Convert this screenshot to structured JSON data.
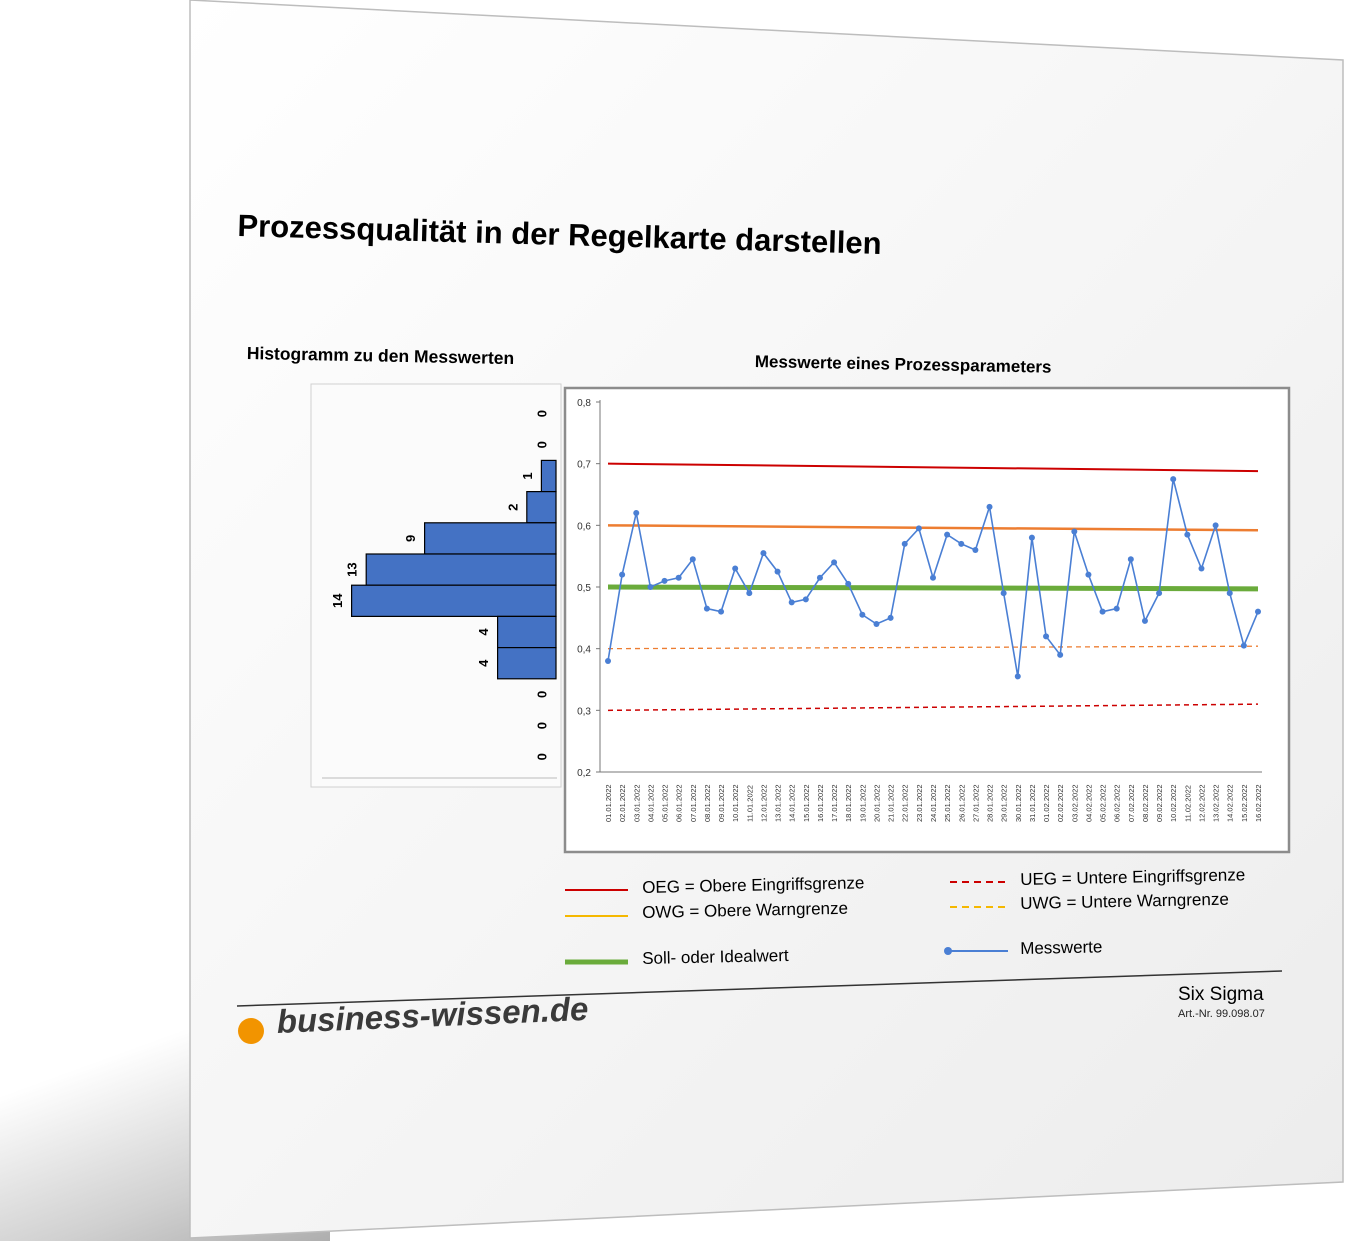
{
  "page": {
    "title": "Prozessqualität in der Regelkarte darstellen",
    "brand": "business-wissen.de",
    "category": "Six Sigma",
    "article": "Art.-Nr. 99.098.07",
    "colors": {
      "brand_orange": "#f29400",
      "bar_fill": "#4472c4",
      "measure_line": "#4a7fd4",
      "oeg": "#cc0000",
      "owg": "#ed7d31",
      "target": "#6aab3b"
    }
  },
  "legend": {
    "oeg": "OEG = Obere Eingriffsgrenze",
    "owg": "OWG = Obere Warngrenze",
    "soll": "Soll- oder Idealwert",
    "ueg": "UEG = Untere Eingriffsgrenze",
    "uwg": "UWG = Untere Warngrenze",
    "mess": "Messwerte"
  },
  "chart_data": [
    {
      "type": "bar",
      "orientation": "horizontal",
      "title": "Histogramm zu den Messwerten",
      "values": [
        0,
        0,
        1,
        2,
        9,
        13,
        14,
        4,
        4,
        0,
        0,
        0
      ]
    },
    {
      "type": "line",
      "title": "Messwerte eines Prozessparameters",
      "ylim": [
        0.2,
        0.8
      ],
      "yticks": [
        "0,2",
        "0,3",
        "0,4",
        "0,5",
        "0,6",
        "0,7",
        "0,8"
      ],
      "x": [
        "01.01.2022",
        "02.01.2022",
        "03.01.2022",
        "04.01.2022",
        "05.01.2022",
        "06.01.2022",
        "07.01.2022",
        "08.01.2022",
        "09.01.2022",
        "10.01.2022",
        "11.01.2022",
        "12.01.2022",
        "13.01.2022",
        "14.01.2022",
        "15.01.2022",
        "16.01.2022",
        "17.01.2022",
        "18.01.2022",
        "19.01.2022",
        "20.01.2022",
        "21.01.2022",
        "22.01.2022",
        "23.01.2022",
        "24.01.2022",
        "25.01.2022",
        "26.01.2022",
        "27.01.2022",
        "28.01.2022",
        "29.01.2022",
        "30.01.2022",
        "31.01.2022",
        "01.02.2022",
        "02.02.2022",
        "03.02.2022",
        "04.02.2022",
        "05.02.2022",
        "06.02.2022",
        "07.02.2022",
        "08.02.2022",
        "09.02.2022",
        "10.02.2022",
        "11.02.2022",
        "12.02.2022",
        "13.02.2022",
        "14.02.2022",
        "15.02.2022",
        "16.02.2022"
      ],
      "series": [
        {
          "name": "Messwerte",
          "values": [
            0.38,
            0.52,
            0.62,
            0.5,
            0.51,
            0.515,
            0.545,
            0.465,
            0.46,
            0.53,
            0.49,
            0.555,
            0.525,
            0.475,
            0.48,
            0.515,
            0.54,
            0.505,
            0.455,
            0.44,
            0.45,
            0.57,
            0.595,
            0.515,
            0.585,
            0.57,
            0.56,
            0.63,
            0.49,
            0.355,
            0.58,
            0.42,
            0.39,
            0.59,
            0.52,
            0.46,
            0.465,
            0.545,
            0.445,
            0.49,
            0.675,
            0.585,
            0.53,
            0.6,
            0.49,
            0.405,
            0.46
          ]
        }
      ],
      "limits": {
        "OEG": 0.7,
        "OWG": 0.6,
        "Soll": 0.5,
        "UWG": 0.4,
        "UEG": 0.3
      }
    }
  ]
}
